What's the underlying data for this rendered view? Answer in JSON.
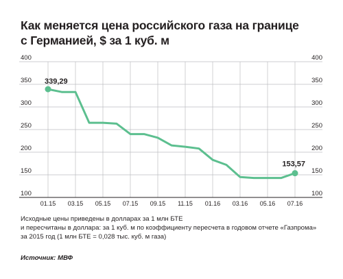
{
  "title_line1": "Как меняется цена российского газа на границе",
  "title_line2": "с Германией,  $ за 1 куб. м",
  "note_line1": "Исходные цены приведены в  долларах  за 1 млн БТЕ",
  "note_line2": "и пересчитаны в доллара: за 1 куб. м по коэффициенту пересчета в годовом отчете «Газпрома»",
  "note_line3": "за 2015 год (1 млн БТЕ  =  0,028 тыс. куб. м газа)",
  "source_label": "Источник:",
  "source_value": "МВФ",
  "colors": {
    "line": "#5cbf8f",
    "grid": "#bcbec0",
    "axis": "#231f20",
    "text": "#231f20"
  },
  "chart_data": {
    "type": "line",
    "title": "Как меняется цена российского газа на границе с Германией,  $ за 1 куб. м",
    "categories": [
      "01.15",
      "",
      "03.15",
      "",
      "05.15",
      "",
      "07.15",
      "",
      "09.15",
      "",
      "11.15",
      "",
      "01.16",
      "",
      "03.16",
      "",
      "05.16",
      "",
      "07.16"
    ],
    "x_tick_labels": [
      "01.15",
      "03.15",
      "05.15",
      "07.15",
      "09.15",
      "11.15",
      "01.16",
      "03.16",
      "05.16",
      "07.16"
    ],
    "values": [
      339.29,
      333,
      333,
      265,
      265,
      263,
      240,
      240,
      232,
      215,
      212,
      208,
      183,
      172,
      145,
      143,
      143,
      143,
      153.57
    ],
    "ylim": [
      100,
      400
    ],
    "y_ticks": [
      100,
      150,
      200,
      250,
      300,
      350,
      400
    ],
    "y_tick_labels_left": [
      "100",
      "150",
      "200",
      "250",
      "300",
      "350",
      "400"
    ],
    "y_tick_labels_right": [
      "100",
      "150",
      "200",
      "250",
      "300",
      "350",
      "400"
    ],
    "start_label": "339,29",
    "end_label": "153,57",
    "grid": true,
    "xlabel": "",
    "ylabel": ""
  }
}
